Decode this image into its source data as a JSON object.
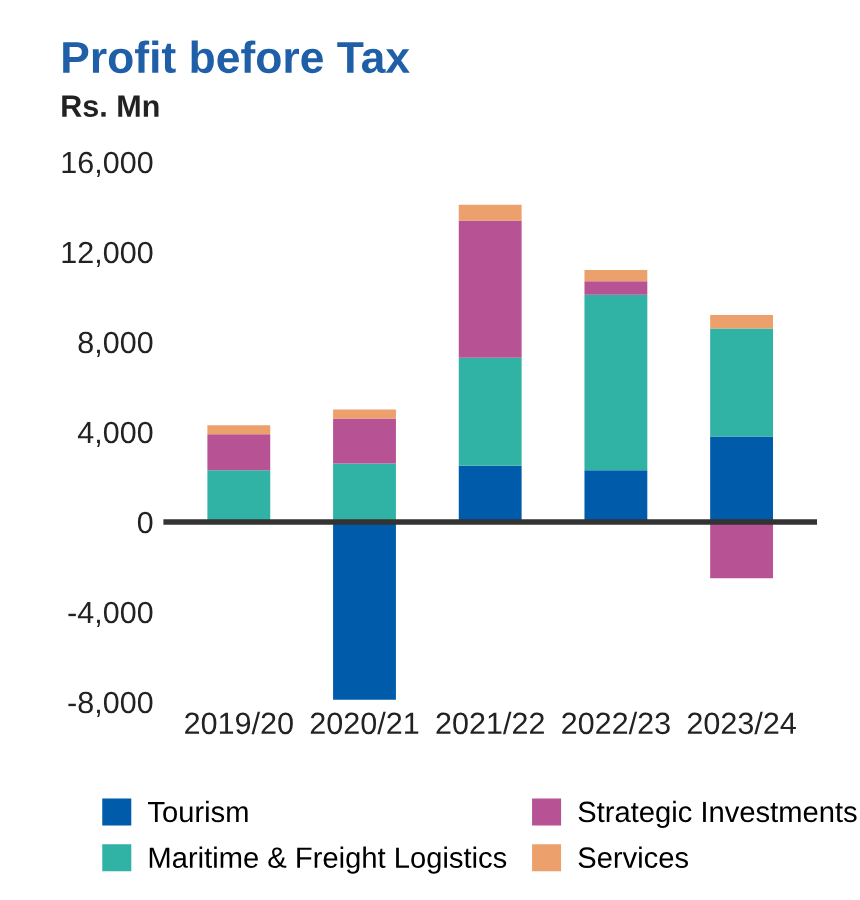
{
  "chart_data": {
    "type": "bar",
    "title": "Profit before Tax",
    "subtitle": "Rs. Mn",
    "categories": [
      "2019/20",
      "2020/21",
      "2021/22",
      "2022/23",
      "2023/24"
    ],
    "stacked": true,
    "series": [
      {
        "name": "Tourism",
        "color": "#005bab",
        "values": [
          null,
          -7900,
          2500,
          2300,
          3800
        ]
      },
      {
        "name": "Maritime & Freight Logistics",
        "color": "#30b3a5",
        "values": [
          2300,
          2600,
          4800,
          7800,
          4800
        ]
      },
      {
        "name": "Strategic Investments",
        "color": "#b75394",
        "values": [
          1600,
          2000,
          6100,
          600,
          -2500
        ]
      },
      {
        "name": "Services",
        "color": "#eca06c",
        "values": [
          400,
          400,
          700,
          500,
          600
        ]
      }
    ],
    "ylim": [
      -8000,
      16000
    ],
    "yticks": [
      {
        "value": -8000,
        "label": "-8,000"
      },
      {
        "value": -4000,
        "label": "-4,000"
      },
      0,
      {
        "value": 4000,
        "label": "4,000"
      },
      {
        "value": 8000,
        "label": "8,000"
      },
      {
        "value": 12000,
        "label": "12,000"
      },
      {
        "value": 16000,
        "label": "16,000"
      }
    ],
    "ref_lines": [
      {
        "axis": "y",
        "value": 0,
        "color": "#333333"
      }
    ],
    "grid": false,
    "legend": "bottom"
  }
}
